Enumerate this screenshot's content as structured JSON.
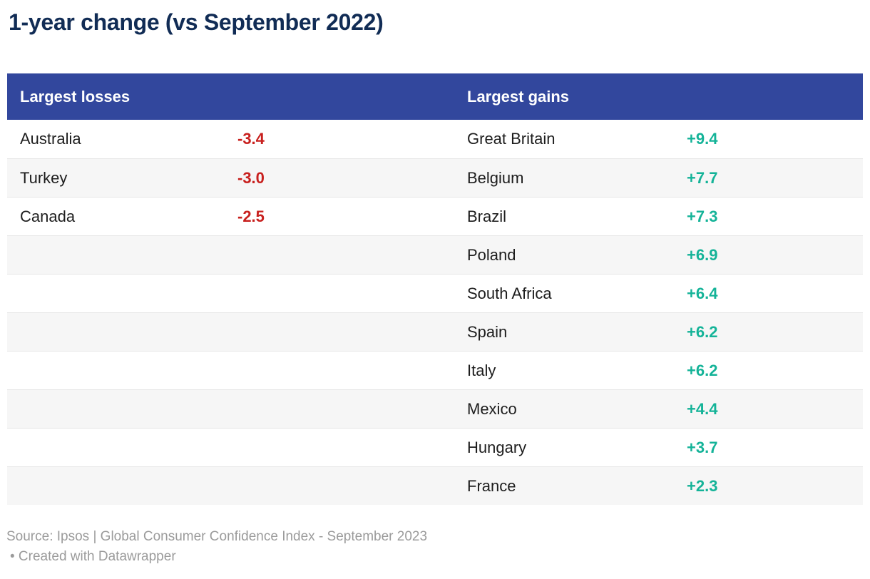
{
  "title": "1-year change (vs September 2022)",
  "table": {
    "header": {
      "losses_label": "Largest losses",
      "gains_label": "Largest gains"
    },
    "rows": [
      {
        "loss_country": "Australia",
        "loss_value": "-3.4",
        "gain_country": "Great Britain",
        "gain_value": "+9.4"
      },
      {
        "loss_country": "Turkey",
        "loss_value": "-3.0",
        "gain_country": "Belgium",
        "gain_value": "+7.7"
      },
      {
        "loss_country": "Canada",
        "loss_value": "-2.5",
        "gain_country": "Brazil",
        "gain_value": "+7.3"
      },
      {
        "loss_country": "",
        "loss_value": "",
        "gain_country": "Poland",
        "gain_value": "+6.9"
      },
      {
        "loss_country": "",
        "loss_value": "",
        "gain_country": "South Africa",
        "gain_value": "+6.4"
      },
      {
        "loss_country": "",
        "loss_value": "",
        "gain_country": "Spain",
        "gain_value": "+6.2"
      },
      {
        "loss_country": "",
        "loss_value": "",
        "gain_country": "Italy",
        "gain_value": "+6.2"
      },
      {
        "loss_country": "",
        "loss_value": "",
        "gain_country": "Mexico",
        "gain_value": "+4.4"
      },
      {
        "loss_country": "",
        "loss_value": "",
        "gain_country": "Hungary",
        "gain_value": "+3.7"
      },
      {
        "loss_country": "",
        "loss_value": "",
        "gain_country": "France",
        "gain_value": "+2.3"
      }
    ]
  },
  "footer": {
    "source": "Source: Ipsos | Global Consumer Confidence Index - September 2023",
    "attribution": "• Created with Datawrapper"
  },
  "colors": {
    "header_bg": "#32479d",
    "title_text": "#112c55",
    "country_text": "#1d1d1d",
    "loss_value": "#c8201e",
    "gain_value": "#14b398",
    "row_stripe": "#f6f6f6",
    "row_border": "#e7e7e7",
    "footer_text": "#9b9b9b"
  },
  "chart_data": {
    "type": "table",
    "title": "1-year change (vs September 2022)",
    "columns": [
      "Largest losses",
      "Largest gains"
    ],
    "series": [
      {
        "name": "Largest losses",
        "categories": [
          "Australia",
          "Turkey",
          "Canada"
        ],
        "values": [
          -3.4,
          -3.0,
          -2.5
        ]
      },
      {
        "name": "Largest gains",
        "categories": [
          "Great Britain",
          "Belgium",
          "Brazil",
          "Poland",
          "South Africa",
          "Spain",
          "Italy",
          "Mexico",
          "Hungary",
          "France"
        ],
        "values": [
          9.4,
          7.7,
          7.3,
          6.9,
          6.4,
          6.2,
          6.2,
          4.4,
          3.7,
          2.3
        ]
      }
    ],
    "source": "Ipsos | Global Consumer Confidence Index - September 2023",
    "attribution": "Created with Datawrapper"
  }
}
